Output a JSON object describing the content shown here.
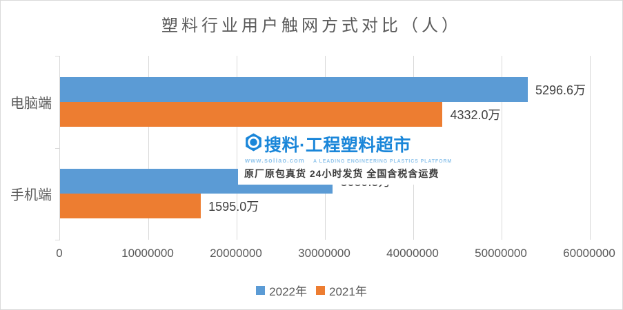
{
  "chart_data": {
    "type": "bar",
    "orientation": "horizontal",
    "title": "塑料行业用户触网方式对比（人）",
    "categories": [
      "电脑端",
      "手机端"
    ],
    "series": [
      {
        "name": "2022年",
        "color": "#5B9BD5",
        "values": [
          52966000,
          30895000
        ],
        "data_labels": [
          "5296.6万",
          "3089.5万"
        ]
      },
      {
        "name": "2021年",
        "color": "#ED7D31",
        "values": [
          43320000,
          15950000
        ],
        "data_labels": [
          "4332.0万",
          "1595.0万"
        ]
      }
    ],
    "xlim": [
      0,
      60000000
    ],
    "x_ticks": [
      0,
      10000000,
      20000000,
      30000000,
      40000000,
      50000000,
      60000000
    ],
    "x_tick_labels": [
      "0",
      "10000000",
      "20000000",
      "30000000",
      "40000000",
      "50000000",
      "60000000"
    ],
    "grid": "vertical",
    "legend_position": "bottom"
  },
  "watermark": {
    "brand": "搜料·工程塑料超市",
    "url": "www.soliao.com",
    "tagline_en": "A LEADING ENGINEERING PLASTICS PLATFORM",
    "tagline_cn": "原厂原包真货  24小时发货  全国含税含运费",
    "brand_color": "#1A86D9",
    "light_color": "#93C6EC",
    "logo_icon": "hexagon-nut-icon"
  },
  "colors": {
    "axis_and_grid": "#D9D9D9",
    "title_text": "#595959",
    "data_label_text": "#404040",
    "series_2022": "#5B9BD5",
    "series_2021": "#ED7D31"
  }
}
